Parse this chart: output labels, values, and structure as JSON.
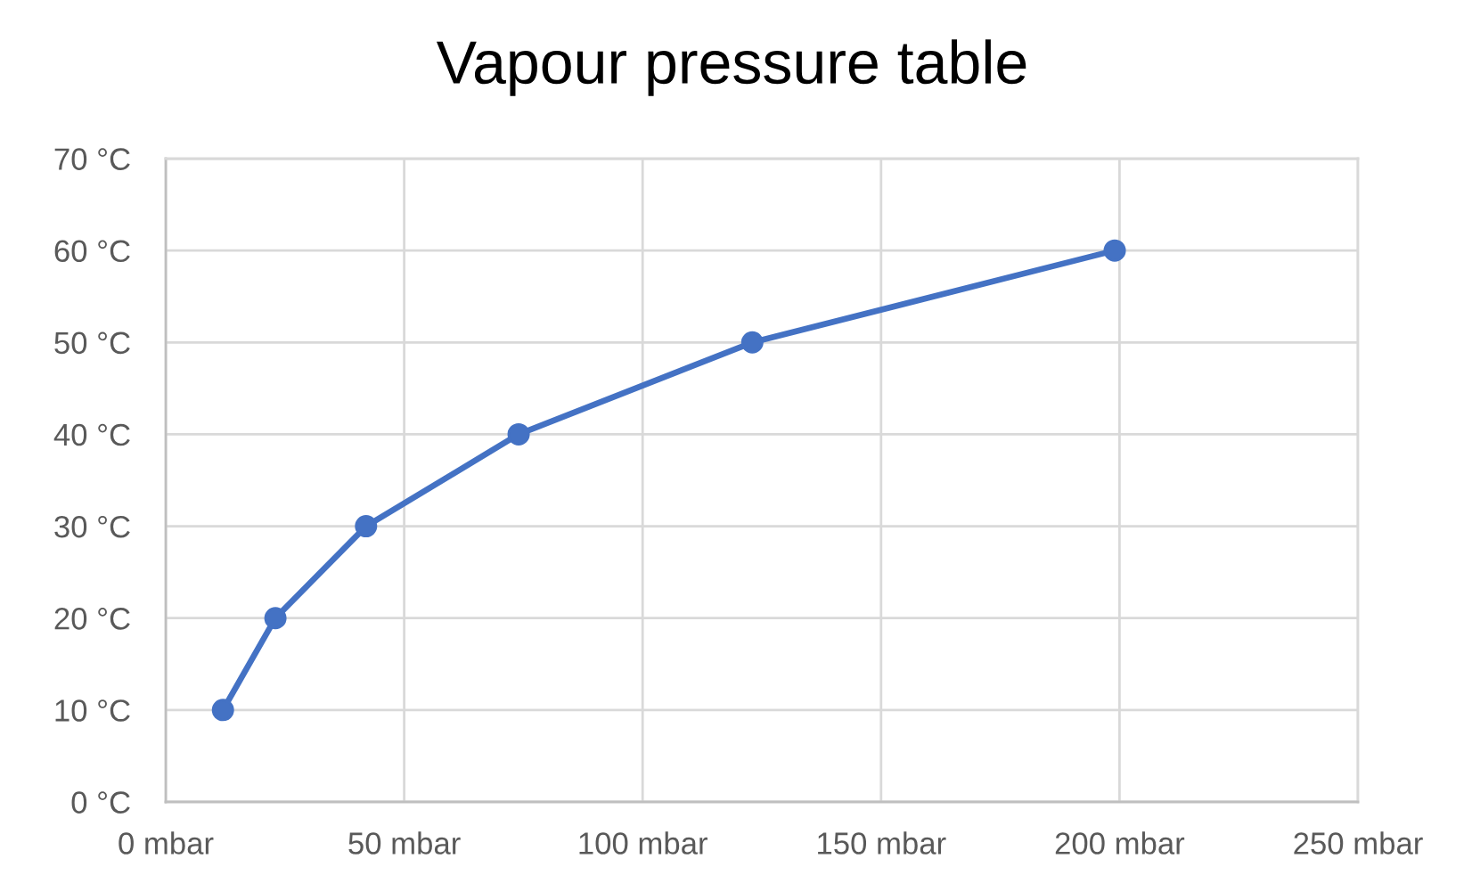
{
  "chart_data": {
    "type": "line",
    "title": "Vapour pressure table",
    "x": [
      12,
      23,
      42,
      74,
      123,
      199
    ],
    "series": [
      {
        "color": "#4472c4",
        "values": [
          10,
          20,
          30,
          40,
          50,
          60
        ]
      }
    ],
    "xlim": [
      0,
      250
    ],
    "xticks": [
      {
        "value": 0,
        "label": "0 mbar"
      },
      {
        "value": 50,
        "label": "50 mbar"
      },
      {
        "value": 100,
        "label": "100 mbar"
      },
      {
        "value": 150,
        "label": "150 mbar"
      },
      {
        "value": 200,
        "label": "200 mbar"
      },
      {
        "value": 250,
        "label": "250 mbar"
      }
    ],
    "ylim": [
      0,
      70
    ],
    "yticks": [
      {
        "value": 0,
        "label": "0 °C"
      },
      {
        "value": 10,
        "label": "10 °C"
      },
      {
        "value": 20,
        "label": "20 °C"
      },
      {
        "value": 30,
        "label": "30 °C"
      },
      {
        "value": 40,
        "label": "40 °C"
      },
      {
        "value": 50,
        "label": "50 °C"
      },
      {
        "value": 60,
        "label": "60 °C"
      },
      {
        "value": 70,
        "label": "70 °C"
      }
    ],
    "grid": true,
    "marker": "circle",
    "line_style": "solid"
  }
}
